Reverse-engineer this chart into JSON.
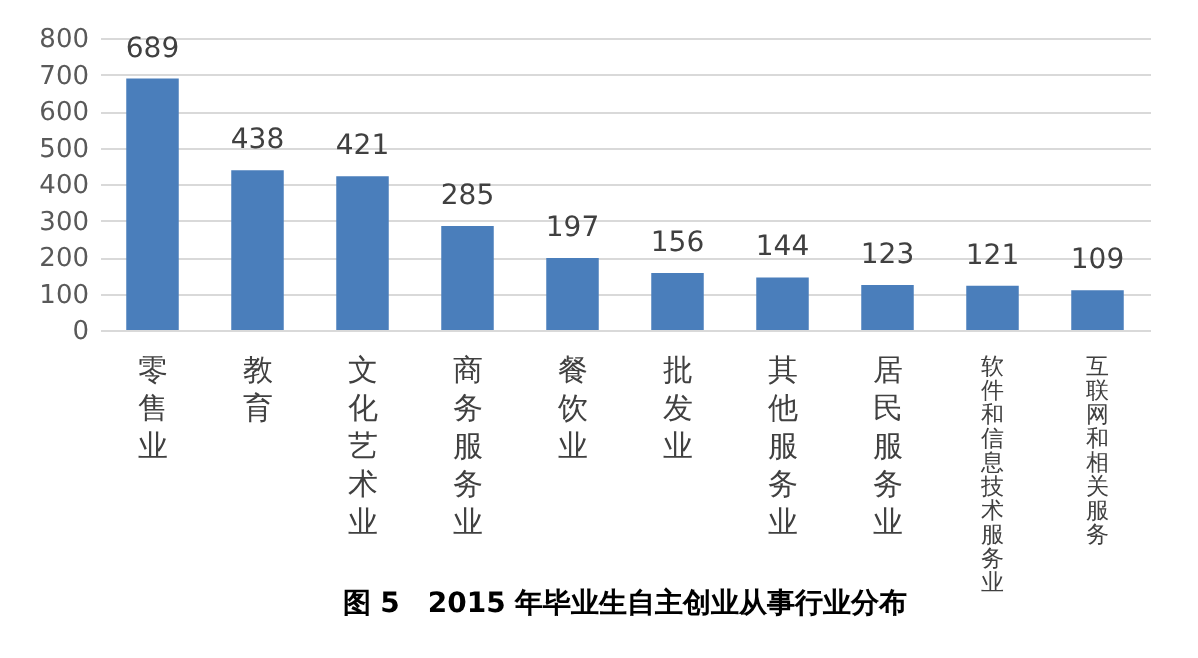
{
  "chart_data": {
    "type": "bar",
    "title": "图 5　2015 年毕业生自主创业从事行业分布",
    "categories": [
      "零售业",
      "教育",
      "文化艺术业",
      "商务服务业",
      "餐饮业",
      "批发业",
      "其他服务业",
      "居民服务业",
      "软件和信息技术服务业",
      "互联网和相关服务"
    ],
    "values": [
      689,
      438,
      421,
      285,
      197,
      156,
      144,
      123,
      121,
      109
    ],
    "color": "#4a7ebb",
    "ylim": [
      0,
      800
    ],
    "yticks": [
      0,
      100,
      200,
      300,
      400,
      500,
      600,
      700,
      800
    ],
    "grid": "y",
    "data_labels": true
  }
}
